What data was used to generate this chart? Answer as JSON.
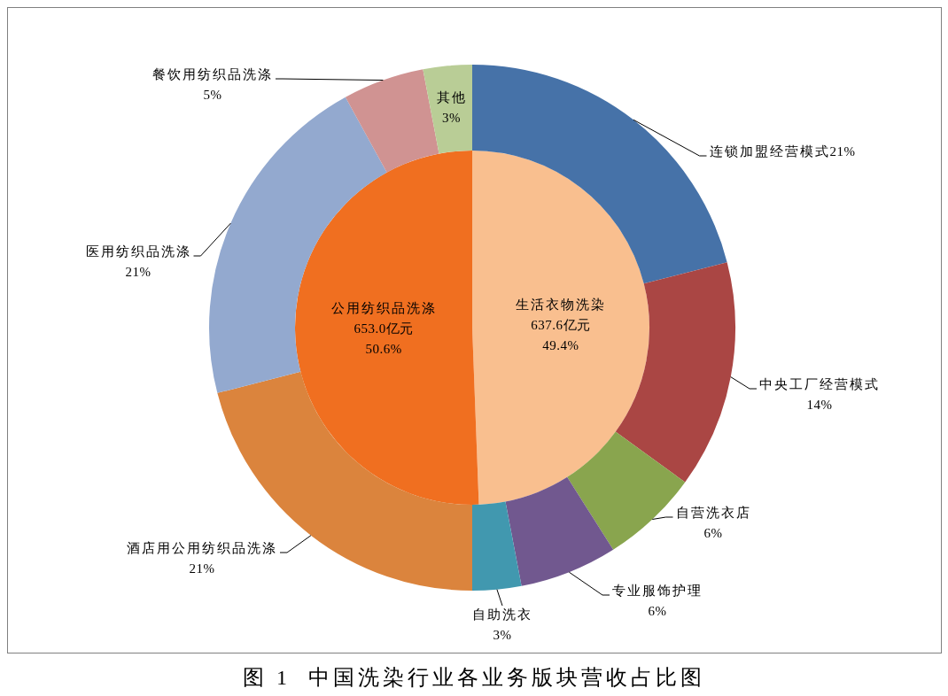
{
  "chart_data": [
    {
      "type": "pie",
      "title": "图 1  中国洗染行业各业务版块营收占比图",
      "categories": [
        "生活衣物洗染",
        "公用纺织品洗涤"
      ],
      "values": [
        637.6,
        653.0
      ],
      "value_labels": [
        "637.6亿元\n49.4%",
        "653.0亿元\n50.6%"
      ],
      "colors": [
        "#f9bf8f",
        "#f06f20"
      ]
    },
    {
      "type": "donut",
      "categories": [
        "连锁加盟经营模式",
        "中央工厂经营模式",
        "自营洗衣店",
        "专业服饰护理",
        "自助洗衣",
        "酒店用公用纺织品洗涤",
        "医用纺织品洗涤",
        "餐饮用纺织品洗涤",
        "其他"
      ],
      "values": [
        21,
        14,
        6,
        6,
        3,
        21,
        21,
        5,
        3
      ],
      "value_labels": [
        "21%",
        "14%",
        "6%",
        "6%",
        "3%",
        "21%",
        "21%",
        "5%",
        "3%"
      ],
      "colors": [
        "#4672a8",
        "#aa4644",
        "#89a54e",
        "#71588f",
        "#4198af",
        "#db843d",
        "#93a9cf",
        "#d09392",
        "#b9cd96"
      ]
    }
  ]
}
